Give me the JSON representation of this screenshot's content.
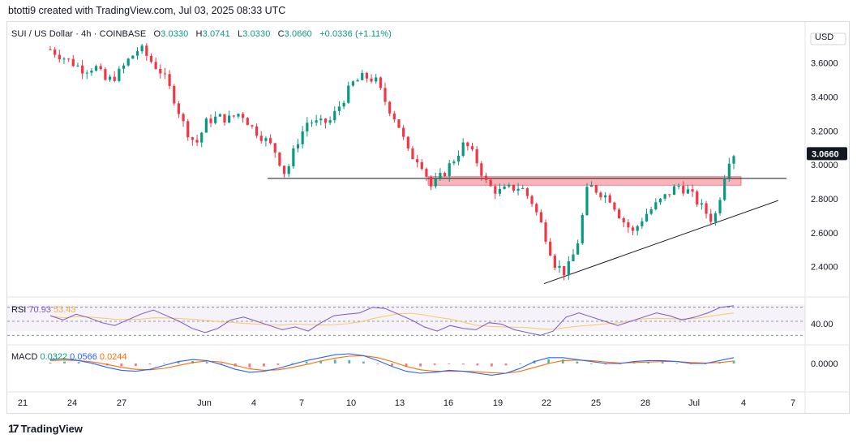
{
  "header": {
    "text": "btotti9 created with TradingView.com, Jul 03, 2025 08:33 UTC"
  },
  "symbol": {
    "name": "SUI / US Dollar · 4h · COINBASE",
    "open_label": "O",
    "open": "3.0330",
    "high_label": "H",
    "high": "3.0741",
    "low_label": "L",
    "low": "3.0330",
    "close_label": "C",
    "close": "3.0660",
    "change": "+0.0336 (+1.11%)"
  },
  "rsi_panel": {
    "label": "RSI",
    "rsi_value": "70.93",
    "ma_value": "53.43",
    "axis_label": "40.00"
  },
  "macd_panel": {
    "label": "MACD",
    "hist_value": "0.0322",
    "macd_value": "0.0566",
    "signal_value": "0.0244",
    "axis_label": "0.0000"
  },
  "footer": {
    "logo_text": "TradingView"
  },
  "colors": {
    "up": "#089981",
    "down": "#f23645",
    "resistance_zone": "#f7a7ae",
    "rsi_line": "#7e57c2",
    "rsi_ma": "#f7c96a",
    "macd_line": "#2962ff",
    "signal_line": "#ff6d00",
    "price_tag_bg": "#131722"
  },
  "chart_data": {
    "type": "candlestick",
    "title": "SUI / US Dollar · 4h · COINBASE",
    "currency_label": "USD",
    "y_ticks": [
      "3.6000",
      "3.4000",
      "3.2000",
      "3.0000",
      "2.8000",
      "2.6000",
      "2.4000"
    ],
    "y_range": [
      2.25,
      3.78
    ],
    "last_price": "3.0660",
    "x_ticks": [
      "21",
      "24",
      "27",
      "Jun",
      "4",
      "7",
      "10",
      "13",
      "16",
      "19",
      "22",
      "25",
      "28",
      "Jul",
      "4",
      "7"
    ],
    "close_path": [
      [
        0,
        3.68
      ],
      [
        2,
        3.64
      ],
      [
        4,
        3.6
      ],
      [
        6,
        3.56
      ],
      [
        8,
        3.58
      ],
      [
        10,
        3.49
      ],
      [
        12,
        3.53
      ],
      [
        14,
        3.62
      ],
      [
        16,
        3.69
      ],
      [
        18,
        3.61
      ],
      [
        20,
        3.54
      ],
      [
        22,
        3.4
      ],
      [
        24,
        3.22
      ],
      [
        26,
        3.12
      ],
      [
        28,
        3.26
      ],
      [
        30,
        3.28
      ],
      [
        32,
        3.27
      ],
      [
        34,
        3.31
      ],
      [
        36,
        3.22
      ],
      [
        38,
        3.16
      ],
      [
        40,
        3.09
      ],
      [
        42,
        2.94
      ],
      [
        44,
        3.13
      ],
      [
        46,
        3.26
      ],
      [
        48,
        3.24
      ],
      [
        50,
        3.26
      ],
      [
        52,
        3.37
      ],
      [
        54,
        3.48
      ],
      [
        56,
        3.52
      ],
      [
        58,
        3.5
      ],
      [
        60,
        3.36
      ],
      [
        62,
        3.25
      ],
      [
        64,
        3.06
      ],
      [
        66,
        3.03
      ],
      [
        68,
        2.87
      ],
      [
        70,
        2.94
      ],
      [
        72,
        3.03
      ],
      [
        74,
        3.13
      ],
      [
        76,
        3.03
      ],
      [
        78,
        2.88
      ],
      [
        80,
        2.84
      ],
      [
        82,
        2.86
      ],
      [
        84,
        2.87
      ],
      [
        86,
        2.78
      ],
      [
        88,
        2.62
      ],
      [
        90,
        2.42
      ],
      [
        92,
        2.36
      ],
      [
        94,
        2.52
      ],
      [
        96,
        2.88
      ],
      [
        98,
        2.84
      ],
      [
        100,
        2.8
      ],
      [
        102,
        2.68
      ],
      [
        104,
        2.6
      ],
      [
        106,
        2.7
      ],
      [
        108,
        2.76
      ],
      [
        110,
        2.82
      ],
      [
        112,
        2.88
      ],
      [
        114,
        2.84
      ],
      [
        116,
        2.76
      ],
      [
        118,
        2.68
      ],
      [
        119,
        2.72
      ],
      [
        120,
        2.9
      ],
      [
        121,
        3.03
      ],
      [
        122,
        3.066
      ]
    ],
    "resistance_zone": [
      2.88,
      2.93
    ],
    "support_level": 2.92,
    "trendline": [
      [
        2.3
      ],
      [
        2.79
      ]
    ],
    "rsi": {
      "level_lines": [
        70,
        50,
        30
      ],
      "values": [
        58,
        52,
        60,
        55,
        48,
        44,
        52,
        60,
        66,
        58,
        50,
        40,
        34,
        40,
        52,
        56,
        50,
        44,
        38,
        42,
        36,
        48,
        58,
        60,
        62,
        70,
        68,
        60,
        52,
        42,
        36,
        44,
        40,
        38,
        48,
        46,
        38,
        34,
        30,
        36,
        56,
        62,
        56,
        50,
        44,
        50,
        56,
        62,
        58,
        52,
        56,
        62,
        70,
        72
      ]
    },
    "macd": {
      "hist": [
        0.01,
        0.02,
        0.015,
        -0.005,
        -0.02,
        -0.03,
        -0.025,
        -0.01,
        0.005,
        0.02,
        0.025,
        0.015,
        -0.01,
        -0.03,
        -0.04,
        -0.03,
        -0.015,
        0.005,
        0.02,
        0.03,
        0.04,
        0.035,
        0.02,
        -0.005,
        -0.025,
        -0.035,
        -0.03,
        -0.015,
        -0.005,
        -0.01,
        -0.02,
        -0.03,
        -0.02,
        0.0,
        0.03,
        0.045,
        0.04,
        0.02,
        0.0,
        -0.01,
        -0.005,
        0.01,
        0.02,
        0.015,
        0.005,
        -0.005,
        0.0,
        0.015,
        0.03
      ],
      "macd_line": [
        0.04,
        0.05,
        0.03,
        0.0,
        -0.04,
        -0.07,
        -0.08,
        -0.06,
        -0.02,
        0.02,
        0.04,
        0.03,
        -0.01,
        -0.06,
        -0.09,
        -0.08,
        -0.05,
        -0.01,
        0.03,
        0.06,
        0.09,
        0.1,
        0.08,
        0.03,
        -0.03,
        -0.08,
        -0.1,
        -0.09,
        -0.07,
        -0.08,
        -0.1,
        -0.12,
        -0.1,
        -0.05,
        0.02,
        0.06,
        0.06,
        0.04,
        0.02,
        0.0,
        0.0,
        0.02,
        0.03,
        0.03,
        0.02,
        0.0,
        0.0,
        0.03,
        0.06
      ],
      "signal_line": [
        0.03,
        0.035,
        0.03,
        0.015,
        -0.01,
        -0.04,
        -0.06,
        -0.065,
        -0.05,
        -0.02,
        0.01,
        0.025,
        0.015,
        -0.02,
        -0.055,
        -0.07,
        -0.065,
        -0.04,
        -0.01,
        0.025,
        0.055,
        0.075,
        0.08,
        0.06,
        0.02,
        -0.03,
        -0.065,
        -0.08,
        -0.08,
        -0.08,
        -0.085,
        -0.095,
        -0.1,
        -0.08,
        -0.04,
        0.0,
        0.03,
        0.035,
        0.03,
        0.015,
        0.005,
        0.01,
        0.015,
        0.02,
        0.02,
        0.01,
        0.005,
        0.01,
        0.025
      ]
    }
  }
}
